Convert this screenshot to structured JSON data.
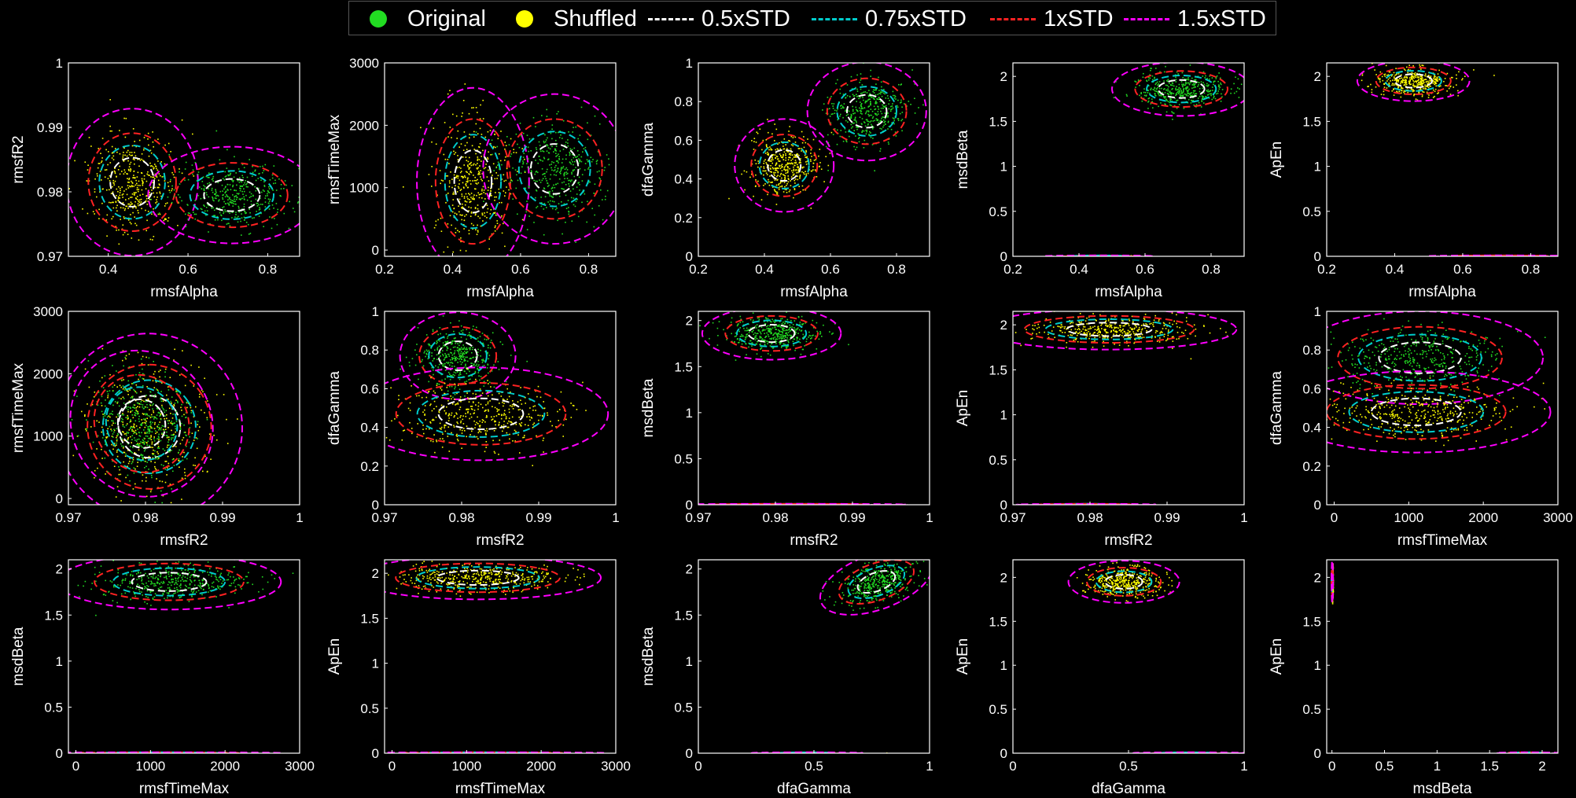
{
  "legend": {
    "original": "Original",
    "shuffled": "Shuffled",
    "std05": "0.5xSTD",
    "std075": "0.75xSTD",
    "std1": "1xSTD",
    "std15": "1.5xSTD"
  },
  "colors": {
    "original": "#22dd22",
    "shuffled": "#ffff00",
    "std05": "#ffffff",
    "std075": "#00cccc",
    "std1": "#ff2222",
    "std15": "#ff00ff",
    "axes": "#ffffff",
    "background": "#000000"
  },
  "chart_data": [
    {
      "type": "scatter",
      "xlabel": "rmsfAlpha",
      "ylabel": "rmsfR2",
      "xlim": [
        0.3,
        0.88
      ],
      "ylim": [
        0.97,
        1
      ],
      "xticks": [
        "0.4",
        "0.6",
        "0.8"
      ],
      "yticks": [
        "0.97",
        "0.98",
        "0.99",
        "1"
      ],
      "xtick_values": [
        0.4,
        0.6,
        0.8
      ],
      "ytick_values": [
        0.97,
        0.98,
        0.99,
        1
      ],
      "clusters": [
        {
          "series": "Shuffled",
          "cx": 0.46,
          "cy": 0.9815,
          "sx": 0.055,
          "sy": 0.0038,
          "rot": 0
        },
        {
          "series": "Original",
          "cx": 0.71,
          "cy": 0.9795,
          "sx": 0.07,
          "sy": 0.0025,
          "rot": 0
        }
      ]
    },
    {
      "type": "scatter",
      "xlabel": "rmsfAlpha",
      "ylabel": "rmsfTimeMax",
      "xlim": [
        0.2,
        0.88
      ],
      "ylim": [
        -100,
        3000
      ],
      "xticks": [
        "0.2",
        "0.4",
        "0.6",
        "0.8"
      ],
      "yticks": [
        "0",
        "1000",
        "2000",
        "3000"
      ],
      "xtick_values": [
        0.2,
        0.4,
        0.6,
        0.8
      ],
      "ytick_values": [
        0,
        1000,
        2000,
        3000
      ],
      "clusters": [
        {
          "series": "Shuffled",
          "cx": 0.46,
          "cy": 1100,
          "sx": 0.055,
          "sy": 500,
          "rot": 0
        },
        {
          "series": "Original",
          "cx": 0.7,
          "cy": 1300,
          "sx": 0.07,
          "sy": 400,
          "rot": 0
        }
      ]
    },
    {
      "type": "scatter",
      "xlabel": "rmsfAlpha",
      "ylabel": "dfaGamma",
      "xlim": [
        0.2,
        0.9
      ],
      "ylim": [
        0,
        1
      ],
      "xticks": [
        "0.2",
        "0.4",
        "0.6",
        "0.8"
      ],
      "yticks": [
        "0",
        "0.2",
        "0.4",
        "0.6",
        "0.8",
        "1"
      ],
      "xtick_values": [
        0.2,
        0.4,
        0.6,
        0.8
      ],
      "ytick_values": [
        0,
        0.2,
        0.4,
        0.6,
        0.8,
        1
      ],
      "clusters": [
        {
          "series": "Shuffled",
          "cx": 0.46,
          "cy": 0.47,
          "sx": 0.05,
          "sy": 0.08,
          "rot": 0
        },
        {
          "series": "Original",
          "cx": 0.71,
          "cy": 0.75,
          "sx": 0.06,
          "sy": 0.085,
          "rot": 0
        }
      ]
    },
    {
      "type": "scatter",
      "xlabel": "rmsfAlpha",
      "ylabel": "msdBeta",
      "xlim": [
        0.2,
        0.9
      ],
      "ylim": [
        0,
        2.15
      ],
      "xticks": [
        "0.2",
        "0.4",
        "0.6",
        "0.8"
      ],
      "yticks": [
        "0",
        "0.5",
        "1",
        "1.5",
        "2"
      ],
      "xtick_values": [
        0.2,
        0.4,
        0.6,
        0.8
      ],
      "ytick_values": [
        0,
        0.5,
        1,
        1.5,
        2
      ],
      "clusters": [
        {
          "series": "Original",
          "cx": 0.71,
          "cy": 1.86,
          "sx": 0.07,
          "sy": 0.1,
          "rot": 0
        },
        {
          "series": "Shuffled",
          "cx": 0.46,
          "cy": 0.003,
          "sx": 0.055,
          "sy": 0.002,
          "rot": 0
        }
      ]
    },
    {
      "type": "scatter",
      "xlabel": "rmsfAlpha",
      "ylabel": "ApEn",
      "xlim": [
        0.2,
        0.88
      ],
      "ylim": [
        0,
        2.15
      ],
      "xticks": [
        "0.2",
        "0.4",
        "0.6",
        "0.8"
      ],
      "yticks": [
        "0",
        "0.5",
        "1",
        "1.5",
        "2"
      ],
      "xtick_values": [
        0.2,
        0.4,
        0.6,
        0.8
      ],
      "ytick_values": [
        0,
        0.5,
        1,
        1.5,
        2
      ],
      "clusters": [
        {
          "series": "Shuffled",
          "cx": 0.455,
          "cy": 1.95,
          "sx": 0.055,
          "sy": 0.075,
          "rot": 0
        },
        {
          "series": "Original",
          "cx": 0.71,
          "cy": 0.003,
          "sx": 0.07,
          "sy": 0.002,
          "rot": 0
        }
      ]
    },
    {
      "type": "scatter",
      "xlabel": "rmsfR2",
      "ylabel": "rmsfTimeMax",
      "xlim": [
        0.97,
        1
      ],
      "ylim": [
        -100,
        3000
      ],
      "xticks": [
        "0.97",
        "0.98",
        "0.99",
        "1"
      ],
      "yticks": [
        "0",
        "1000",
        "2000",
        "3000"
      ],
      "xtick_values": [
        0.97,
        0.98,
        0.99,
        1
      ],
      "ytick_values": [
        0,
        1000,
        2000,
        3000
      ],
      "clusters": [
        {
          "series": "Shuffled",
          "cx": 0.9805,
          "cy": 1150,
          "sx": 0.004,
          "sy": 500,
          "rot": -35
        },
        {
          "series": "Original",
          "cx": 0.9795,
          "cy": 1200,
          "sx": 0.003,
          "sy": 400,
          "rot": -35
        }
      ]
    },
    {
      "type": "scatter",
      "xlabel": "rmsfR2",
      "ylabel": "dfaGamma",
      "xlim": [
        0.97,
        1
      ],
      "ylim": [
        0,
        1
      ],
      "xticks": [
        "0.97",
        "0.98",
        "0.99",
        "1"
      ],
      "yticks": [
        "0",
        "0.2",
        "0.4",
        "0.6",
        "0.8",
        "1"
      ],
      "xtick_values": [
        0.97,
        0.98,
        0.99,
        1
      ],
      "ytick_values": [
        0,
        0.2,
        0.4,
        0.6,
        0.8,
        1
      ],
      "clusters": [
        {
          "series": "Original",
          "cx": 0.9795,
          "cy": 0.77,
          "sx": 0.0025,
          "sy": 0.075,
          "rot": 0
        },
        {
          "series": "Shuffled",
          "cx": 0.9825,
          "cy": 0.47,
          "sx": 0.0055,
          "sy": 0.08,
          "rot": 0
        }
      ]
    },
    {
      "type": "scatter",
      "xlabel": "rmsfR2",
      "ylabel": "msdBeta",
      "xlim": [
        0.97,
        1
      ],
      "ylim": [
        0,
        2.1
      ],
      "xticks": [
        "0.97",
        "0.98",
        "0.99",
        "1"
      ],
      "yticks": [
        "0",
        "0.5",
        "1",
        "1.5",
        "2"
      ],
      "xtick_values": [
        0.97,
        0.98,
        0.99,
        1
      ],
      "ytick_values": [
        0,
        0.5,
        1,
        1.5,
        2
      ],
      "clusters": [
        {
          "series": "Original",
          "cx": 0.9795,
          "cy": 1.86,
          "sx": 0.003,
          "sy": 0.095,
          "rot": 0
        },
        {
          "series": "Shuffled",
          "cx": 0.982,
          "cy": 0.003,
          "sx": 0.005,
          "sy": 0.002,
          "rot": 0
        }
      ]
    },
    {
      "type": "scatter",
      "xlabel": "rmsfR2",
      "ylabel": "ApEn",
      "xlim": [
        0.97,
        1
      ],
      "ylim": [
        0,
        2.15
      ],
      "xticks": [
        "0.97",
        "0.98",
        "0.99",
        "1"
      ],
      "yticks": [
        "0",
        "0.5",
        "1",
        "1.5",
        "2"
      ],
      "xtick_values": [
        0.97,
        0.98,
        0.99,
        1
      ],
      "ytick_values": [
        0,
        0.5,
        1,
        1.5,
        2
      ],
      "clusters": [
        {
          "series": "Shuffled",
          "cx": 0.9825,
          "cy": 1.95,
          "sx": 0.0055,
          "sy": 0.075,
          "rot": 0
        },
        {
          "series": "Original",
          "cx": 0.9795,
          "cy": 0.003,
          "sx": 0.003,
          "sy": 0.002,
          "rot": 0
        }
      ]
    },
    {
      "type": "scatter",
      "xlabel": "rmsfTimeMax",
      "ylabel": "dfaGamma",
      "xlim": [
        -100,
        3000
      ],
      "ylim": [
        0,
        1
      ],
      "xticks": [
        "0",
        "1000",
        "2000",
        "3000"
      ],
      "yticks": [
        "0",
        "0.2",
        "0.4",
        "0.6",
        "0.8",
        "1"
      ],
      "xtick_values": [
        0,
        1000,
        2000,
        3000
      ],
      "ytick_values": [
        0,
        0.2,
        0.4,
        0.6,
        0.8,
        1
      ],
      "clusters": [
        {
          "series": "Original",
          "cx": 1150,
          "cy": 0.76,
          "sx": 550,
          "sy": 0.08,
          "rot": 0
        },
        {
          "series": "Shuffled",
          "cx": 1100,
          "cy": 0.48,
          "sx": 600,
          "sy": 0.07,
          "rot": 0
        }
      ]
    },
    {
      "type": "scatter",
      "xlabel": "rmsfTimeMax",
      "ylabel": "msdBeta",
      "xlim": [
        -100,
        3000
      ],
      "ylim": [
        0,
        2.1
      ],
      "xticks": [
        "0",
        "1000",
        "2000",
        "3000"
      ],
      "yticks": [
        "0",
        "0.5",
        "1",
        "1.5",
        "2"
      ],
      "xtick_values": [
        0,
        1000,
        2000,
        3000
      ],
      "ytick_values": [
        0,
        0.5,
        1,
        1.5,
        2
      ],
      "clusters": [
        {
          "series": "Original",
          "cx": 1250,
          "cy": 1.86,
          "sx": 500,
          "sy": 0.1,
          "rot": 0
        },
        {
          "series": "Shuffled",
          "cx": 1100,
          "cy": 0.003,
          "sx": 550,
          "sy": 0.002,
          "rot": 0
        }
      ]
    },
    {
      "type": "scatter",
      "xlabel": "rmsfTimeMax",
      "ylabel": "ApEn",
      "xlim": [
        -100,
        3000
      ],
      "ylim": [
        0,
        2.15
      ],
      "xticks": [
        "0",
        "1000",
        "2000",
        "3000"
      ],
      "yticks": [
        "0",
        "0.5",
        "1",
        "1.5",
        "2"
      ],
      "xtick_values": [
        0,
        1000,
        2000,
        3000
      ],
      "ytick_values": [
        0,
        0.5,
        1,
        1.5,
        2
      ],
      "clusters": [
        {
          "series": "Shuffled",
          "cx": 1150,
          "cy": 1.95,
          "sx": 550,
          "sy": 0.08,
          "rot": 0
        },
        {
          "series": "Original",
          "cx": 1200,
          "cy": 0.003,
          "sx": 550,
          "sy": 0.002,
          "rot": 0
        }
      ]
    },
    {
      "type": "scatter",
      "xlabel": "dfaGamma",
      "ylabel": "msdBeta",
      "xlim": [
        0,
        1
      ],
      "ylim": [
        0,
        2.1
      ],
      "xticks": [
        "0",
        "0.5",
        "1"
      ],
      "yticks": [
        "0",
        "0.5",
        "1",
        "1.5",
        "2"
      ],
      "xtick_values": [
        0,
        0.5,
        1
      ],
      "ytick_values": [
        0,
        0.5,
        1,
        1.5,
        2
      ],
      "clusters": [
        {
          "series": "Original",
          "cx": 0.77,
          "cy": 1.86,
          "sx": 0.085,
          "sy": 0.1,
          "rot": -20
        },
        {
          "series": "Shuffled",
          "cx": 0.47,
          "cy": 0.003,
          "sx": 0.08,
          "sy": 0.002,
          "rot": 0
        }
      ]
    },
    {
      "type": "scatter",
      "xlabel": "dfaGamma",
      "ylabel": "ApEn",
      "xlim": [
        0,
        1
      ],
      "ylim": [
        0,
        2.2
      ],
      "xticks": [
        "0",
        "0.5",
        "1"
      ],
      "yticks": [
        "0",
        "0.5",
        "1",
        "1.5",
        "2"
      ],
      "xtick_values": [
        0,
        0.5,
        1
      ],
      "ytick_values": [
        0,
        0.5,
        1,
        1.5,
        2
      ],
      "clusters": [
        {
          "series": "Shuffled",
          "cx": 0.48,
          "cy": 1.95,
          "sx": 0.08,
          "sy": 0.08,
          "rot": 0
        },
        {
          "series": "Original",
          "cx": 0.76,
          "cy": 0.003,
          "sx": 0.08,
          "sy": 0.002,
          "rot": 0
        }
      ]
    },
    {
      "type": "scatter",
      "xlabel": "msdBeta",
      "ylabel": "ApEn",
      "xlim": [
        -0.05,
        2.15
      ],
      "ylim": [
        0,
        2.2
      ],
      "xticks": [
        "0",
        "0.5",
        "1",
        "1.5",
        "2"
      ],
      "yticks": [
        "0",
        "0.5",
        "1",
        "1.5",
        "2"
      ],
      "xtick_values": [
        0,
        0.5,
        1,
        1.5,
        2
      ],
      "ytick_values": [
        0,
        0.5,
        1,
        1.5,
        2
      ],
      "clusters": [
        {
          "series": "Shuffled",
          "cx": 0.003,
          "cy": 1.95,
          "sx": 0.002,
          "sy": 0.08,
          "rot": 0
        },
        {
          "series": "Original",
          "cx": 1.86,
          "cy": 0.003,
          "sx": 0.1,
          "sy": 0.002,
          "rot": 0
        }
      ]
    }
  ]
}
